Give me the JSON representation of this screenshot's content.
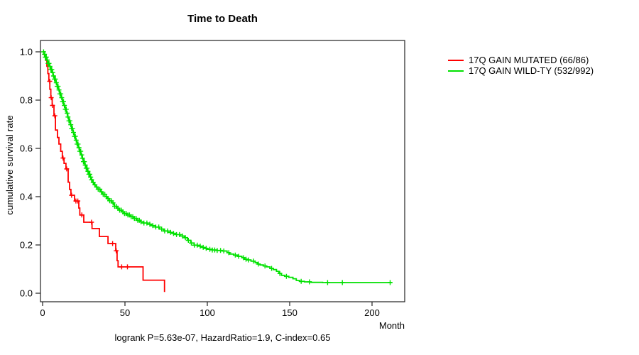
{
  "title": "Time to Death",
  "annotation": "logrank P=5.63e-07, HazardRatio=1.9, C-index=0.65",
  "x_axis": {
    "label": "Month",
    "ticks": [
      "0",
      "50",
      "100",
      "150",
      "200"
    ],
    "tick_values": [
      0,
      50,
      100,
      150,
      200
    ]
  },
  "y_axis": {
    "label": "cumulative survival rate",
    "ticks": [
      "0.0",
      "0.2",
      "0.4",
      "0.6",
      "0.8",
      "1.0"
    ],
    "tick_values": [
      0.0,
      0.2,
      0.4,
      0.6,
      0.8,
      1.0
    ]
  },
  "colors": {
    "axis": "#222222",
    "background": "#ffffff"
  },
  "chart_data": {
    "type": "line",
    "subtype": "kaplan-meier-step",
    "title": "Time to Death",
    "xlabel": "Month",
    "ylabel": "cumulative survival rate",
    "xlim": [
      0,
      220
    ],
    "ylim": [
      0,
      1.0
    ],
    "grid": false,
    "legend_position": "right-outside",
    "series": [
      {
        "name": "17Q GAIN MUTATED (66/86)",
        "color": "#ff0000",
        "steps": [
          [
            0,
            1.0
          ],
          [
            1,
            0.988
          ],
          [
            1.8,
            0.965
          ],
          [
            2.6,
            0.94
          ],
          [
            3.2,
            0.91
          ],
          [
            3.8,
            0.878
          ],
          [
            4.4,
            0.845
          ],
          [
            5,
            0.81
          ],
          [
            5.8,
            0.778
          ],
          [
            6.9,
            0.735
          ],
          [
            7.8,
            0.676
          ],
          [
            9,
            0.645
          ],
          [
            9.9,
            0.618
          ],
          [
            11,
            0.588
          ],
          [
            12,
            0.56
          ],
          [
            13,
            0.538
          ],
          [
            14.2,
            0.515
          ],
          [
            15.5,
            0.46
          ],
          [
            16.4,
            0.43
          ],
          [
            17.2,
            0.406
          ],
          [
            19.4,
            0.382
          ],
          [
            22,
            0.353
          ],
          [
            22.6,
            0.324
          ],
          [
            25,
            0.294
          ],
          [
            30,
            0.268
          ],
          [
            34.5,
            0.235
          ],
          [
            39.7,
            0.206
          ],
          [
            44.4,
            0.176
          ],
          [
            45.2,
            0.135
          ],
          [
            45.8,
            0.109
          ],
          [
            61,
            0.054
          ],
          [
            74,
            0.005
          ]
        ],
        "censor_times": [
          4.3,
          5.2,
          6.0,
          7.4,
          12.4,
          14.6,
          17.6,
          20.2,
          21.4,
          23.8,
          29.7,
          42.5,
          44.7,
          48,
          51.5
        ]
      },
      {
        "name": "17Q GAIN WILD-TY (532/992)",
        "color": "#00e100",
        "steps": [
          [
            0,
            1.0
          ],
          [
            0.8,
            0.99
          ],
          [
            1.6,
            0.978
          ],
          [
            2.4,
            0.966
          ],
          [
            3.2,
            0.952
          ],
          [
            4,
            0.94
          ],
          [
            4.8,
            0.927
          ],
          [
            5.6,
            0.914
          ],
          [
            6.4,
            0.9
          ],
          [
            7.2,
            0.887
          ],
          [
            8,
            0.872
          ],
          [
            8.8,
            0.857
          ],
          [
            9.6,
            0.842
          ],
          [
            10.4,
            0.826
          ],
          [
            11.2,
            0.81
          ],
          [
            12,
            0.794
          ],
          [
            12.8,
            0.778
          ],
          [
            13.6,
            0.762
          ],
          [
            14.4,
            0.746
          ],
          [
            15.2,
            0.73
          ],
          [
            16,
            0.714
          ],
          [
            16.8,
            0.698
          ],
          [
            17.6,
            0.682
          ],
          [
            18.4,
            0.666
          ],
          [
            19.2,
            0.65
          ],
          [
            20,
            0.634
          ],
          [
            20.8,
            0.618
          ],
          [
            21.6,
            0.603
          ],
          [
            22.4,
            0.588
          ],
          [
            23.2,
            0.573
          ],
          [
            24,
            0.559
          ],
          [
            24.8,
            0.545
          ],
          [
            25.6,
            0.531
          ],
          [
            26.4,
            0.518
          ],
          [
            27.2,
            0.505
          ],
          [
            28,
            0.493
          ],
          [
            28.8,
            0.481
          ],
          [
            29.6,
            0.47
          ],
          [
            30.4,
            0.459
          ],
          [
            31.4,
            0.449
          ],
          [
            32.5,
            0.44
          ],
          [
            33.6,
            0.431
          ],
          [
            35,
            0.42
          ],
          [
            36.4,
            0.41
          ],
          [
            37.8,
            0.4
          ],
          [
            39.2,
            0.392
          ],
          [
            40.6,
            0.383
          ],
          [
            42,
            0.374
          ],
          [
            43.5,
            0.36
          ],
          [
            45,
            0.352
          ],
          [
            46.5,
            0.344
          ],
          [
            48,
            0.337
          ],
          [
            49.5,
            0.33
          ],
          [
            51,
            0.324
          ],
          [
            53,
            0.317
          ],
          [
            55,
            0.31
          ],
          [
            57,
            0.302
          ],
          [
            59,
            0.296
          ],
          [
            61,
            0.291
          ],
          [
            63.5,
            0.286
          ],
          [
            66,
            0.28
          ],
          [
            68.5,
            0.274
          ],
          [
            71,
            0.266
          ],
          [
            73.5,
            0.258
          ],
          [
            76,
            0.252
          ],
          [
            78.5,
            0.248
          ],
          [
            81,
            0.243
          ],
          [
            83.5,
            0.237
          ],
          [
            86,
            0.23
          ],
          [
            88,
            0.219
          ],
          [
            90,
            0.208
          ],
          [
            92,
            0.199
          ],
          [
            94,
            0.195
          ],
          [
            96,
            0.19
          ],
          [
            98,
            0.186
          ],
          [
            100,
            0.182
          ],
          [
            103,
            0.179
          ],
          [
            106,
            0.177
          ],
          [
            109,
            0.175
          ],
          [
            112,
            0.168
          ],
          [
            113.5,
            0.162
          ],
          [
            116,
            0.158
          ],
          [
            118.5,
            0.153
          ],
          [
            121,
            0.147
          ],
          [
            122.5,
            0.141
          ],
          [
            124,
            0.138
          ],
          [
            126.5,
            0.133
          ],
          [
            129,
            0.127
          ],
          [
            130.5,
            0.121
          ],
          [
            132,
            0.117
          ],
          [
            134,
            0.113
          ],
          [
            136,
            0.109
          ],
          [
            138,
            0.103
          ],
          [
            140,
            0.098
          ],
          [
            142,
            0.091
          ],
          [
            143.5,
            0.082
          ],
          [
            145,
            0.074
          ],
          [
            147,
            0.07
          ],
          [
            149.5,
            0.066
          ],
          [
            152,
            0.06
          ],
          [
            154,
            0.053
          ],
          [
            156,
            0.049
          ],
          [
            159,
            0.047
          ],
          [
            163,
            0.045
          ],
          [
            170,
            0.044
          ],
          [
            212,
            0.044
          ]
        ],
        "censor_times": [
          0.6,
          1.15,
          1.7,
          2.25,
          2.8,
          3.35,
          3.9,
          4.45,
          5.0,
          5.55,
          6.1,
          6.65,
          7.2,
          7.75,
          8.3,
          8.85,
          9.4,
          9.95,
          10.5,
          11.05,
          11.6,
          12.15,
          12.7,
          13.25,
          13.8,
          14.35,
          14.9,
          15.45,
          16.0,
          16.55,
          17.1,
          17.65,
          18.2,
          18.75,
          19.3,
          19.85,
          20.4,
          20.95,
          21.5,
          22.05,
          22.6,
          23.15,
          23.7,
          24.25,
          24.8,
          25.35,
          25.9,
          26.45,
          27.0,
          27.55,
          28.1,
          28.65,
          29.2,
          29.75,
          30.75,
          31.75,
          32.75,
          33.75,
          34.75,
          35.75,
          36.75,
          37.75,
          38.75,
          39.75,
          40.75,
          41.75,
          42.75,
          43.75,
          44.75,
          45.75,
          46.75,
          47.75,
          48.75,
          49.75,
          50.75,
          51.75,
          52.75,
          53.75,
          54.75,
          55.75,
          56.75,
          57.75,
          58.75,
          59.75,
          61.5,
          63.3,
          65.1,
          66.9,
          68.7,
          70.5,
          72.3,
          74.1,
          75.9,
          77.7,
          79.5,
          81.3,
          83.1,
          84.9,
          86.7,
          88.5,
          90.3,
          92.1,
          93.9,
          95.7,
          97.5,
          99.3,
          101.5,
          103,
          104.5,
          106,
          108,
          110,
          113,
          117,
          119,
          122,
          123.5,
          125,
          128,
          131,
          135,
          139,
          144,
          148,
          157,
          162,
          173,
          182,
          211
        ]
      }
    ]
  }
}
